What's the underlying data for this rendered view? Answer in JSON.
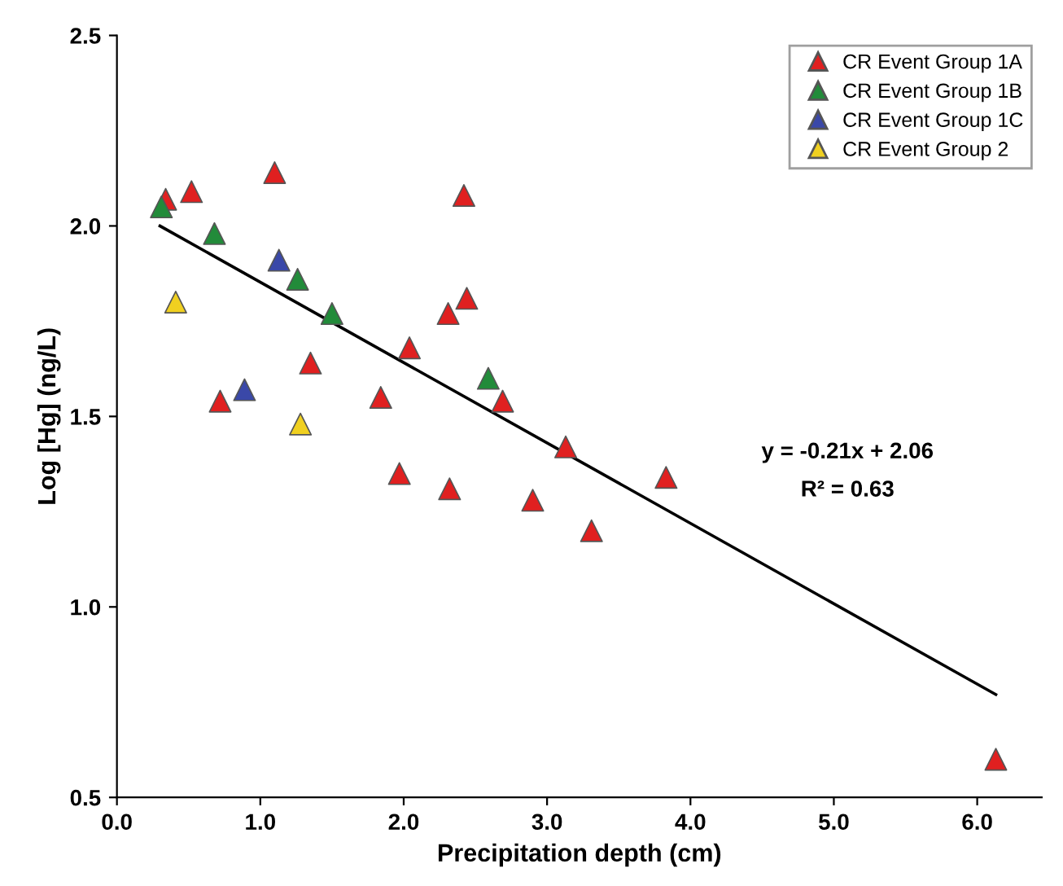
{
  "chart_data": {
    "type": "scatter",
    "xlabel": "Precipitation depth (cm)",
    "ylabel": "Log [Hg] (ng/L)",
    "xlim": [
      0,
      6.45
    ],
    "ylim": [
      0.5,
      2.5
    ],
    "xticks": [
      {
        "value": 0,
        "label": "0.0"
      },
      {
        "value": 1,
        "label": "1.0"
      },
      {
        "value": 2,
        "label": "2.0"
      },
      {
        "value": 3,
        "label": "3.0"
      },
      {
        "value": 4,
        "label": "4.0"
      },
      {
        "value": 5,
        "label": "5.0"
      },
      {
        "value": 6,
        "label": "6.0"
      }
    ],
    "yticks": [
      {
        "value": 0.5,
        "label": "0.5"
      },
      {
        "value": 1,
        "label": "1.0"
      },
      {
        "value": 1.5,
        "label": "1.5"
      },
      {
        "value": 2,
        "label": "2.0"
      },
      {
        "value": 2.5,
        "label": "2.5"
      }
    ],
    "grid": false,
    "legend": "top right",
    "marker": "triangle",
    "series": [
      {
        "name": "CR Event Group 1A",
        "color": "#e02020",
        "x": [
          0.34,
          0.52,
          1.1,
          2.42,
          2.31,
          2.44,
          2.04,
          1.35,
          2.69,
          0.72,
          1.84,
          1.97,
          2.32,
          3.13,
          3.83,
          2.9,
          3.31,
          6.13
        ],
        "values": [
          2.07,
          2.09,
          2.14,
          2.08,
          1.77,
          1.81,
          1.68,
          1.64,
          1.54,
          1.54,
          1.55,
          1.35,
          1.31,
          1.42,
          1.34,
          1.28,
          1.2,
          0.6
        ]
      },
      {
        "name": "CR Event Group 1B",
        "color": "#228b3a",
        "x": [
          0.31,
          0.68,
          1.26,
          1.5,
          2.59
        ],
        "values": [
          2.05,
          1.98,
          1.86,
          1.77,
          1.6
        ]
      },
      {
        "name": "CR Event Group 1C",
        "color": "#3a48a8",
        "x": [
          1.13,
          0.89
        ],
        "values": [
          1.91,
          1.57
        ]
      },
      {
        "name": "CR Event Group 2",
        "color": "#f0d020",
        "x": [
          0.41,
          1.28
        ],
        "values": [
          1.8,
          1.48
        ]
      },
      {
        "type": "line",
        "marker": "none",
        "color": "#000000",
        "x": [
          0.3,
          6.13
        ],
        "values": [
          2.0,
          0.77
        ]
      }
    ],
    "annotations": [
      "y = -0.21x + 2.06",
      "R² = 0.63"
    ]
  }
}
